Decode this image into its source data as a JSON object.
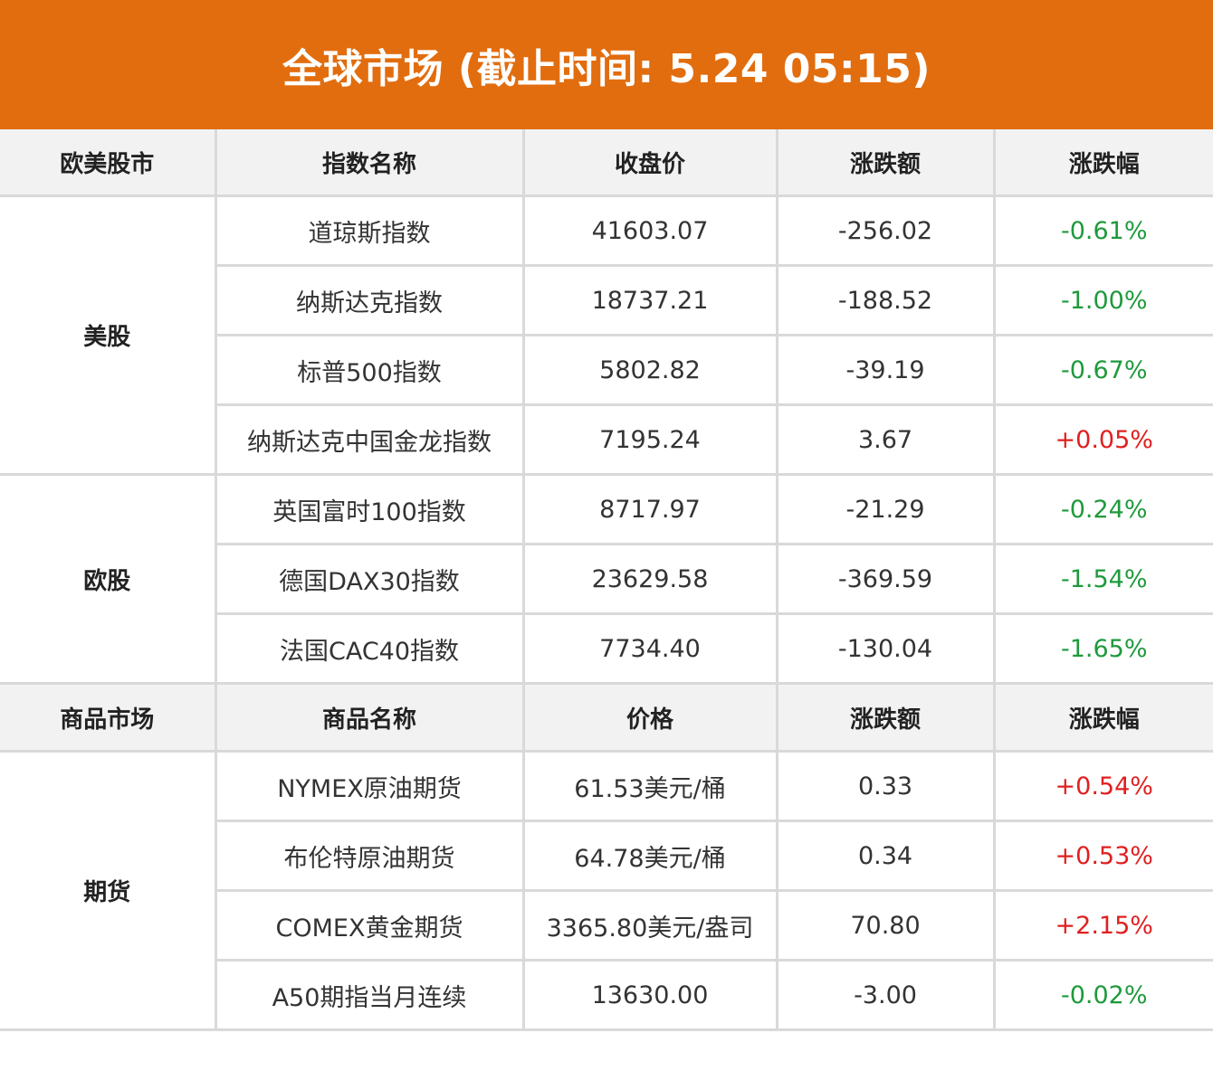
{
  "title": "全球市场 (截止时间: 5.24 05:15)",
  "colors": {
    "header_bg": "#e26d0e",
    "header_row_bg": "#f2f2f2",
    "down": "#1e9a3c",
    "up": "#e02020",
    "border": "#d9d9d9"
  },
  "stocks_header": [
    "欧美股市",
    "指数名称",
    "收盘价",
    "涨跌额",
    "涨跌幅"
  ],
  "us": {
    "group": "美股",
    "rows": [
      {
        "name": "道琼斯指数",
        "price": "41603.07",
        "change": "-256.02",
        "pct": "-0.61%"
      },
      {
        "name": "纳斯达克指数",
        "price": "18737.21",
        "change": "-188.52",
        "pct": "-1.00%"
      },
      {
        "name": "标普500指数",
        "price": "5802.82",
        "change": "-39.19",
        "pct": "-0.67%"
      },
      {
        "name": "纳斯达克中国金龙指数",
        "price": "7195.24",
        "change": "3.67",
        "pct": "+0.05%"
      }
    ]
  },
  "eu": {
    "group": "欧股",
    "rows": [
      {
        "name": "英国富时100指数",
        "price": "8717.97",
        "change": "-21.29",
        "pct": "-0.24%"
      },
      {
        "name": "德国DAX30指数",
        "price": "23629.58",
        "change": "-369.59",
        "pct": "-1.54%"
      },
      {
        "name": "法国CAC40指数",
        "price": "7734.40",
        "change": "-130.04",
        "pct": "-1.65%"
      }
    ]
  },
  "commodities_header": [
    "商品市场",
    "商品名称",
    "价格",
    "涨跌额",
    "涨跌幅"
  ],
  "futures": {
    "group": "期货",
    "rows": [
      {
        "name": "NYMEX原油期货",
        "price": "61.53美元/桶",
        "change": "0.33",
        "pct": "+0.54%"
      },
      {
        "name": "布伦特原油期货",
        "price": "64.78美元/桶",
        "change": "0.34",
        "pct": "+0.53%"
      },
      {
        "name": "COMEX黄金期货",
        "price": "3365.80美元/盎司",
        "change": "70.80",
        "pct": "+2.15%"
      },
      {
        "name": "A50期指当月连续",
        "price": "13630.00",
        "change": "-3.00",
        "pct": "-0.02%"
      }
    ]
  }
}
